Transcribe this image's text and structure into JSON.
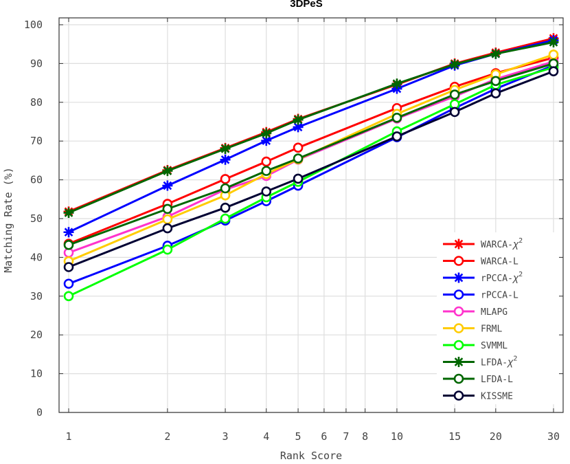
{
  "chart_data": {
    "type": "line",
    "title": "3DPeS",
    "xlabel": "Rank Score",
    "ylabel": "Matching Rate (%)",
    "xscale": "log",
    "xlim": [
      1,
      30
    ],
    "ylim": [
      0,
      100
    ],
    "xticks": [
      1,
      2,
      3,
      4,
      5,
      6,
      7,
      8,
      10,
      15,
      20,
      30
    ],
    "xtick_labels": [
      "1",
      "2",
      "3",
      "4",
      "5",
      "6",
      "7",
      "8",
      "10",
      "15",
      "20",
      "30"
    ],
    "yticks": [
      0,
      10,
      20,
      30,
      40,
      50,
      60,
      70,
      80,
      90,
      100
    ],
    "ytick_labels": [
      "0",
      "10",
      "20",
      "30",
      "40",
      "50",
      "60",
      "70",
      "80",
      "90",
      "100"
    ],
    "grid": true,
    "legend_position": "bottom-right",
    "x": [
      1,
      2,
      3,
      4,
      5,
      10,
      15,
      20,
      30
    ],
    "series": [
      {
        "name": "WARCA-",
        "sup": "χ",
        "exp": "2",
        "color": "#ff0000",
        "marker": "asterisk",
        "values": [
          51.8,
          62.5,
          68.2,
          72.3,
          75.7,
          84.6,
          90.0,
          92.8,
          96.5
        ]
      },
      {
        "name": "WARCA-L",
        "color": "#ff0000",
        "marker": "circle",
        "values": [
          43.5,
          53.8,
          60.2,
          64.7,
          68.3,
          78.5,
          84.0,
          87.5,
          91.5
        ]
      },
      {
        "name": "rPCCA-",
        "sup": "χ",
        "exp": "2",
        "color": "#0000ff",
        "marker": "asterisk",
        "values": [
          46.5,
          58.5,
          65.2,
          70.1,
          73.6,
          83.5,
          89.5,
          92.5,
          96.0
        ]
      },
      {
        "name": "rPCCA-L",
        "color": "#0000ff",
        "marker": "circle",
        "values": [
          33.2,
          43.0,
          49.5,
          54.5,
          58.5,
          71.0,
          78.5,
          83.5,
          89.5
        ]
      },
      {
        "name": "MLAPG",
        "color": "#ff33cc",
        "marker": "circle",
        "values": [
          41.2,
          50.5,
          57.5,
          61.0,
          65.2,
          75.8,
          81.5,
          86.0,
          90.5
        ]
      },
      {
        "name": "FRML",
        "color": "#ffcc00",
        "marker": "circle",
        "values": [
          39.0,
          49.8,
          56.0,
          61.5,
          65.3,
          77.0,
          83.2,
          87.2,
          92.3
        ]
      },
      {
        "name": "SVMML",
        "color": "#00ff00",
        "marker": "circle",
        "values": [
          30.0,
          42.0,
          50.0,
          55.5,
          59.5,
          72.5,
          79.5,
          84.5,
          89.0
        ]
      },
      {
        "name": "LFDA-",
        "sup": "χ",
        "exp": "2",
        "color": "#006600",
        "marker": "asterisk",
        "values": [
          51.5,
          62.3,
          68.0,
          72.0,
          75.5,
          84.8,
          89.8,
          92.5,
          95.5
        ]
      },
      {
        "name": "LFDA-L",
        "color": "#006600",
        "marker": "circle",
        "values": [
          43.2,
          52.5,
          57.8,
          62.3,
          65.5,
          76.0,
          82.0,
          85.5,
          90.0
        ]
      },
      {
        "name": "KISSME",
        "color": "#000033",
        "marker": "circle",
        "values": [
          37.5,
          47.5,
          52.8,
          57.0,
          60.3,
          71.2,
          77.5,
          82.3,
          88.0
        ]
      }
    ]
  }
}
